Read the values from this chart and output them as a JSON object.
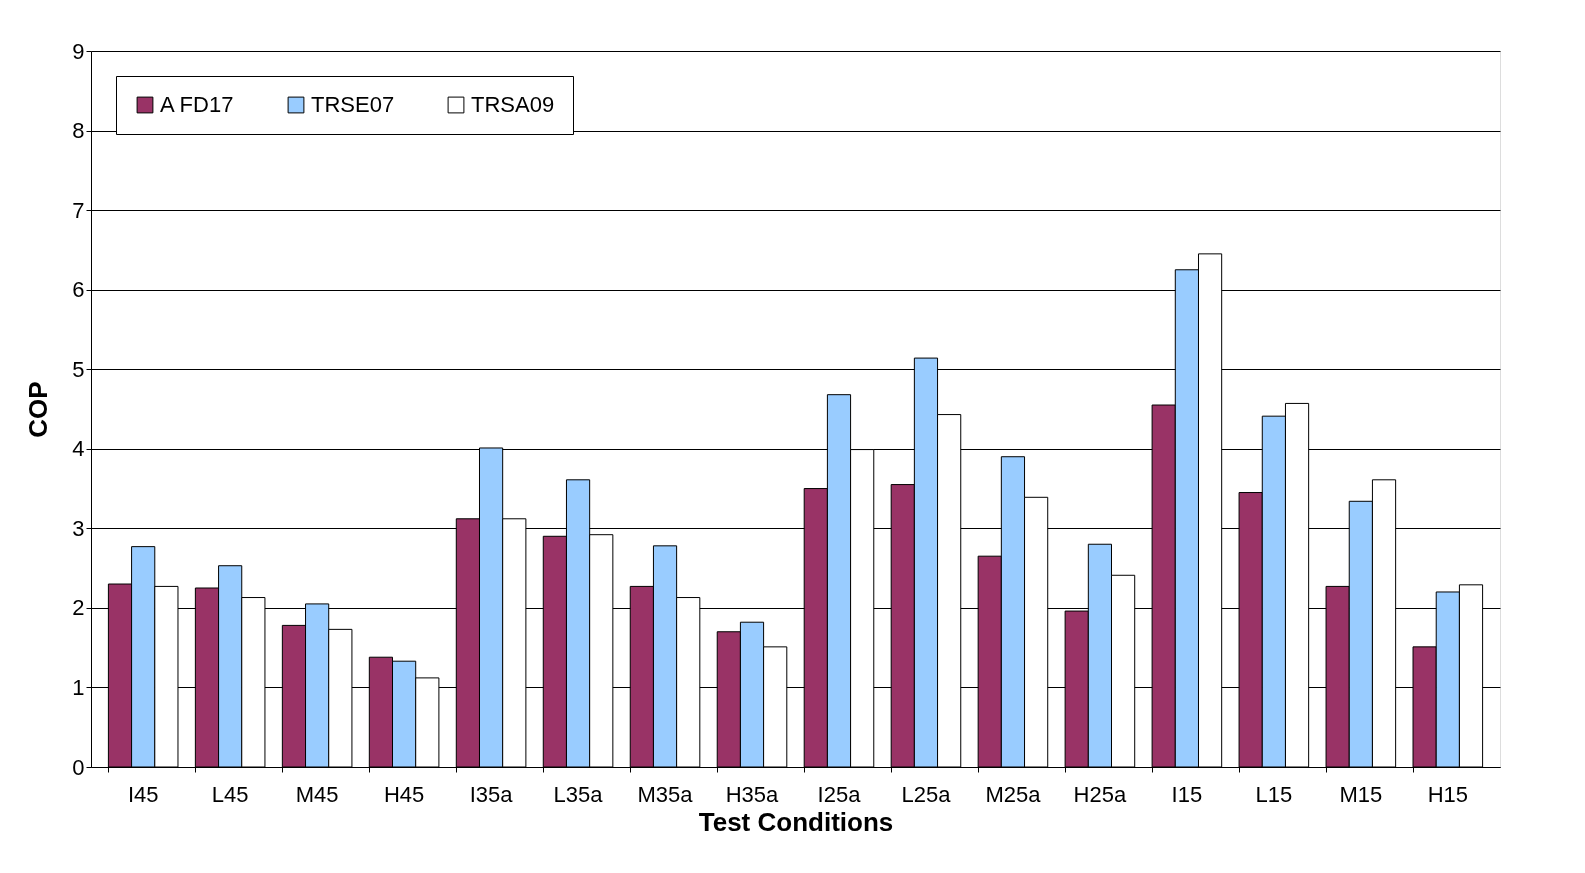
{
  "chart_data": {
    "type": "bar",
    "xlabel": "Test Conditions",
    "ylabel": "COP",
    "categories": [
      "I45",
      "L45",
      "M45",
      "H45",
      "I35a",
      "L35a",
      "M35a",
      "H35a",
      "I25a",
      "L25a",
      "M25a",
      "H25a",
      "I15",
      "L15",
      "M15",
      "H15"
    ],
    "series": [
      {
        "name": "A FD17",
        "color": "#993366",
        "values": [
          2.3,
          2.25,
          1.78,
          1.38,
          3.12,
          2.9,
          2.27,
          1.7,
          3.5,
          3.55,
          2.65,
          1.96,
          4.55,
          3.45,
          2.27,
          1.51
        ]
      },
      {
        "name": "TRSE07",
        "color": "#99ccff",
        "values": [
          2.77,
          2.53,
          2.05,
          1.33,
          4.01,
          3.61,
          2.78,
          1.82,
          4.68,
          5.14,
          3.9,
          2.8,
          6.25,
          4.41,
          3.34,
          2.2
        ]
      },
      {
        "name": "TRSA09",
        "color": "#ffffff",
        "values": [
          2.27,
          2.13,
          1.73,
          1.12,
          3.12,
          2.92,
          2.13,
          1.51,
          3.99,
          4.43,
          3.39,
          2.41,
          6.45,
          4.57,
          3.61,
          2.29
        ]
      }
    ],
    "ylim": [
      0,
      9
    ],
    "yticks": [
      0,
      1,
      2,
      3,
      4,
      5,
      6,
      7,
      8,
      9
    ],
    "grid": "y",
    "legend": "top left"
  }
}
